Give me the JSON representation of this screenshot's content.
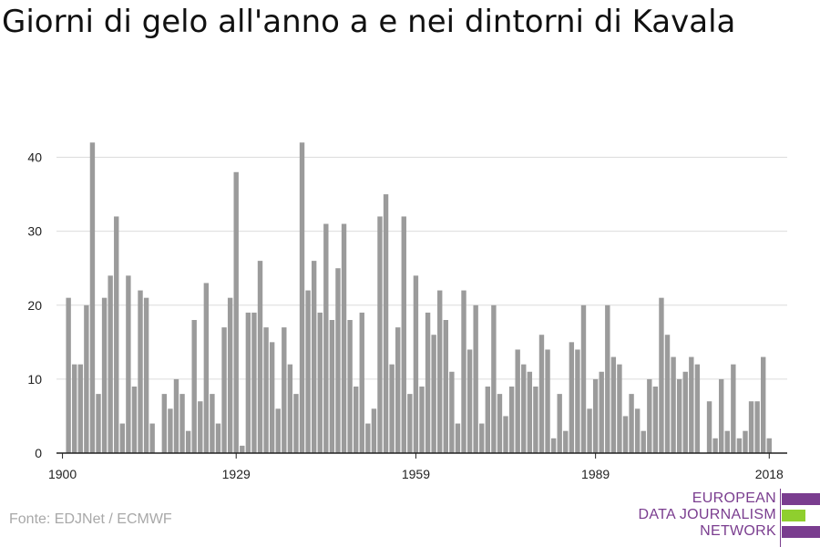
{
  "chart_data": {
    "type": "bar",
    "title": "Giorni di gelo all'anno a e nei dintorni di Kavala",
    "xlabel": "",
    "ylabel": "",
    "ylim": [
      0,
      45
    ],
    "yticks": [
      0,
      10,
      20,
      30,
      40
    ],
    "xticks": [
      1900,
      1929,
      1959,
      1989,
      2018
    ],
    "grid": true,
    "bar_color": "#9b9b9b",
    "x": [
      1900,
      1901,
      1902,
      1903,
      1904,
      1905,
      1906,
      1907,
      1908,
      1909,
      1910,
      1911,
      1912,
      1913,
      1914,
      1915,
      1916,
      1917,
      1918,
      1919,
      1920,
      1921,
      1922,
      1923,
      1924,
      1925,
      1926,
      1927,
      1928,
      1929,
      1930,
      1931,
      1932,
      1933,
      1934,
      1935,
      1936,
      1937,
      1938,
      1939,
      1940,
      1941,
      1942,
      1943,
      1944,
      1945,
      1946,
      1947,
      1948,
      1949,
      1950,
      1951,
      1952,
      1953,
      1954,
      1955,
      1956,
      1957,
      1958,
      1959,
      1960,
      1961,
      1962,
      1963,
      1964,
      1965,
      1966,
      1967,
      1968,
      1969,
      1970,
      1971,
      1972,
      1973,
      1974,
      1975,
      1976,
      1977,
      1978,
      1979,
      1980,
      1981,
      1982,
      1983,
      1984,
      1985,
      1986,
      1987,
      1988,
      1989,
      1990,
      1991,
      1992,
      1993,
      1994,
      1995,
      1996,
      1997,
      1998,
      1999,
      2000,
      2001,
      2002,
      2003,
      2004,
      2005,
      2006,
      2007,
      2008,
      2009,
      2010,
      2011,
      2012,
      2013,
      2014,
      2015,
      2016,
      2017,
      2018,
      2019
    ],
    "values": [
      0,
      21,
      12,
      12,
      20,
      42,
      8,
      21,
      24,
      32,
      4,
      24,
      9,
      22,
      21,
      4,
      0,
      8,
      6,
      10,
      8,
      3,
      18,
      7,
      23,
      8,
      4,
      17,
      21,
      38,
      1,
      19,
      19,
      26,
      17,
      15,
      6,
      17,
      12,
      8,
      42,
      22,
      26,
      19,
      31,
      18,
      25,
      31,
      18,
      9,
      19,
      4,
      6,
      32,
      35,
      12,
      17,
      32,
      8,
      24,
      9,
      19,
      16,
      22,
      18,
      11,
      4,
      22,
      14,
      20,
      4,
      9,
      20,
      8,
      5,
      9,
      14,
      12,
      11,
      9,
      16,
      14,
      2,
      8,
      3,
      15,
      14,
      20,
      6,
      10,
      11,
      20,
      13,
      12,
      5,
      8,
      6,
      3,
      10,
      9,
      21,
      16,
      13,
      10,
      11,
      13,
      12,
      0,
      7,
      2,
      10,
      3,
      12,
      2,
      3,
      7,
      7,
      13,
      2,
      0
    ]
  },
  "source": "Fonte: EDJNet / ECMWF",
  "logo": {
    "lines": [
      "EUROPEAN",
      "DATA JOURNALISM",
      "NETWORK"
    ],
    "colors": {
      "primary": "#7a3d8f",
      "accent": "#8fcf2e"
    }
  }
}
